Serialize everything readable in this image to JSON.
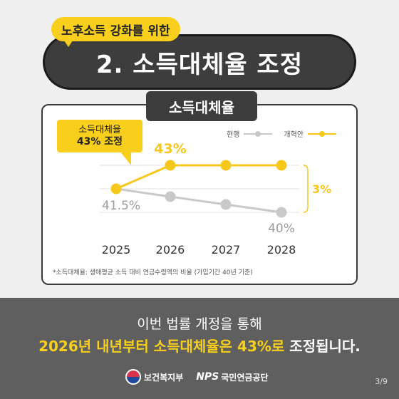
{
  "header": {
    "subtitle": "노후소득 강화를 위한",
    "title": "2. 소득대체율 조정"
  },
  "card": {
    "tab_label": "소득대체율",
    "callout_line1": "소득대체율",
    "callout_line2": "43% 조정",
    "footnote": "*소득대체율: 생애평균 소득 대비 연금수령액의 비율 (가입기간 40년 기준)"
  },
  "legend": {
    "current": "현행",
    "reform": "개혁안"
  },
  "colors": {
    "current": "#c9c9c9",
    "reform": "#f6c81c",
    "gap": "#f6c81c"
  },
  "chart_data": {
    "type": "line",
    "categories": [
      "2025",
      "2026",
      "2027",
      "2028"
    ],
    "series": [
      {
        "name": "현행",
        "values": [
          41.5,
          41.0,
          40.5,
          40.0
        ]
      },
      {
        "name": "개혁안",
        "values": [
          41.5,
          43.0,
          43.0,
          43.0
        ]
      }
    ],
    "data_labels": {
      "start": "41.5%",
      "reform_2026": "43%",
      "current_2028": "40%"
    },
    "annotation": "3%",
    "ylim": [
      39,
      44
    ]
  },
  "bottom": {
    "line1": "이번 법률 개정을 통해",
    "line2_highlight": "2026년 내년부터 소득대체율은 43%로",
    "line2_rest": " 조정됩니다.",
    "logo1": "보건복지부",
    "logo2_mark": "NPS",
    "logo2_name": "국민연금공단",
    "page": "3/9"
  }
}
